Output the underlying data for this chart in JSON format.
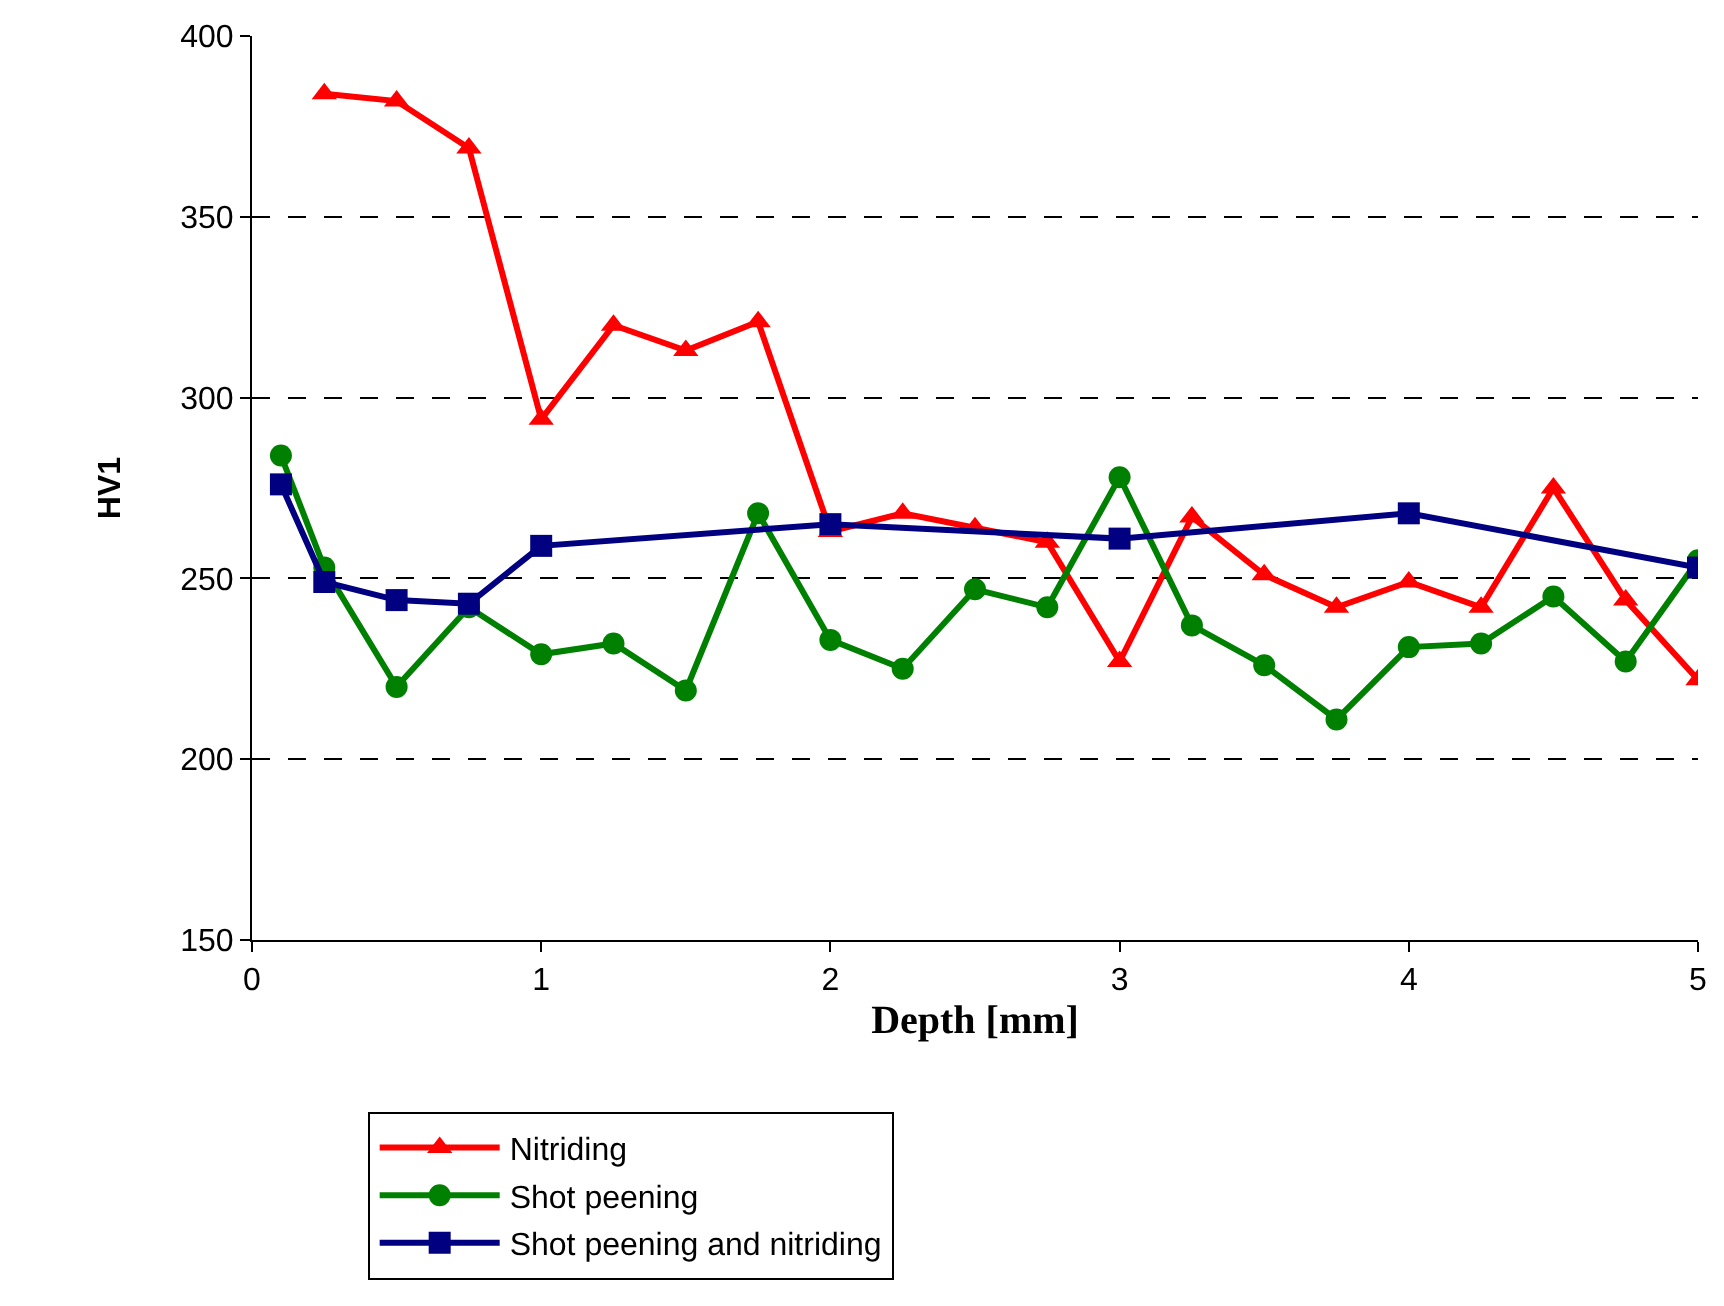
{
  "chart_data": {
    "type": "line",
    "xlabel": "Depth [mm]",
    "ylabel": "HV1",
    "xlim": [
      0,
      5
    ],
    "xticks": [
      0,
      1,
      2,
      3,
      4,
      5
    ],
    "ylim": [
      150,
      400
    ],
    "yticks": [
      150,
      200,
      250,
      300,
      350,
      400
    ],
    "grid": "y",
    "legend": "bottom",
    "line_style": "solid",
    "series": [
      {
        "name": "Nitriding",
        "color": "#ff0000",
        "marker": "triangle",
        "x": [
          0.25,
          0.5,
          0.75,
          1,
          1.25,
          1.5,
          1.75,
          2,
          2.25,
          2.5,
          2.75,
          3,
          3.25,
          3.5,
          3.75,
          4,
          4.25,
          4.5,
          4.75,
          5
        ],
        "values": [
          384,
          382,
          369,
          294,
          320,
          313,
          321,
          263,
          268,
          264,
          260,
          227,
          267,
          251,
          242,
          249,
          242,
          275,
          244,
          222
        ]
      },
      {
        "name": "Shot peening",
        "color": "#008000",
        "marker": "circle",
        "x": [
          0.1,
          0.25,
          0.5,
          0.75,
          1,
          1.25,
          1.5,
          1.75,
          2,
          2.25,
          2.5,
          2.75,
          3,
          3.25,
          3.5,
          3.75,
          4,
          4.25,
          4.5,
          4.75,
          5
        ],
        "values": [
          284,
          253,
          220,
          242,
          229,
          232,
          219,
          268,
          233,
          225,
          247,
          242,
          278,
          237,
          226,
          211,
          231,
          232,
          245,
          227,
          255
        ]
      },
      {
        "name": "Shot peening and nitriding",
        "color": "#000080",
        "marker": "square",
        "x": [
          0.1,
          0.25,
          0.5,
          0.75,
          1,
          2,
          3,
          4,
          5
        ],
        "values": [
          276,
          249,
          244,
          243,
          259,
          265,
          261,
          268,
          253
        ]
      }
    ]
  }
}
